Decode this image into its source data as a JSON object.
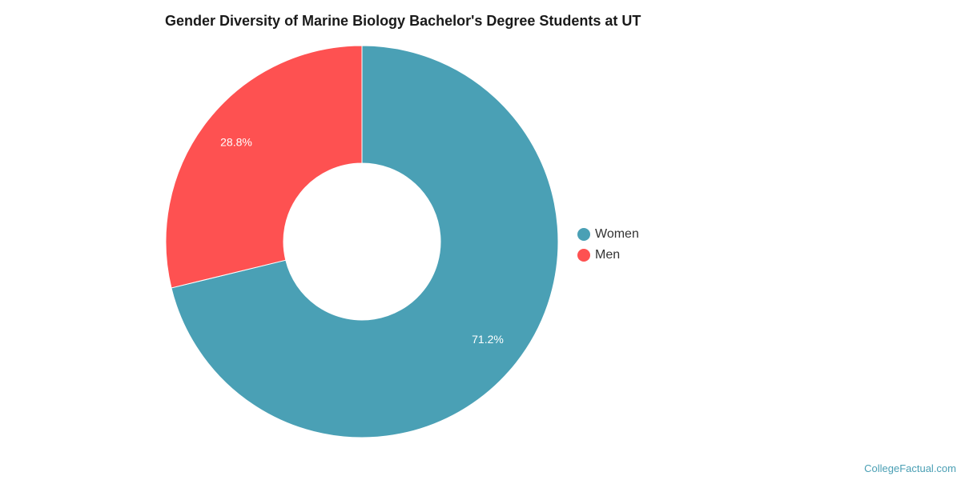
{
  "chart_data": {
    "type": "pie",
    "title": "Gender Diversity of Marine Biology Bachelor's Degree Students at UT",
    "categories": [
      "Women",
      "Men"
    ],
    "values": [
      71.2,
      28.8
    ],
    "data_labels": [
      "71.2%",
      "28.8%"
    ],
    "colors": [
      "#4aa0b5",
      "#fe5151"
    ],
    "donut": true,
    "legend_position": "right"
  },
  "source": "CollegeFactual.com"
}
